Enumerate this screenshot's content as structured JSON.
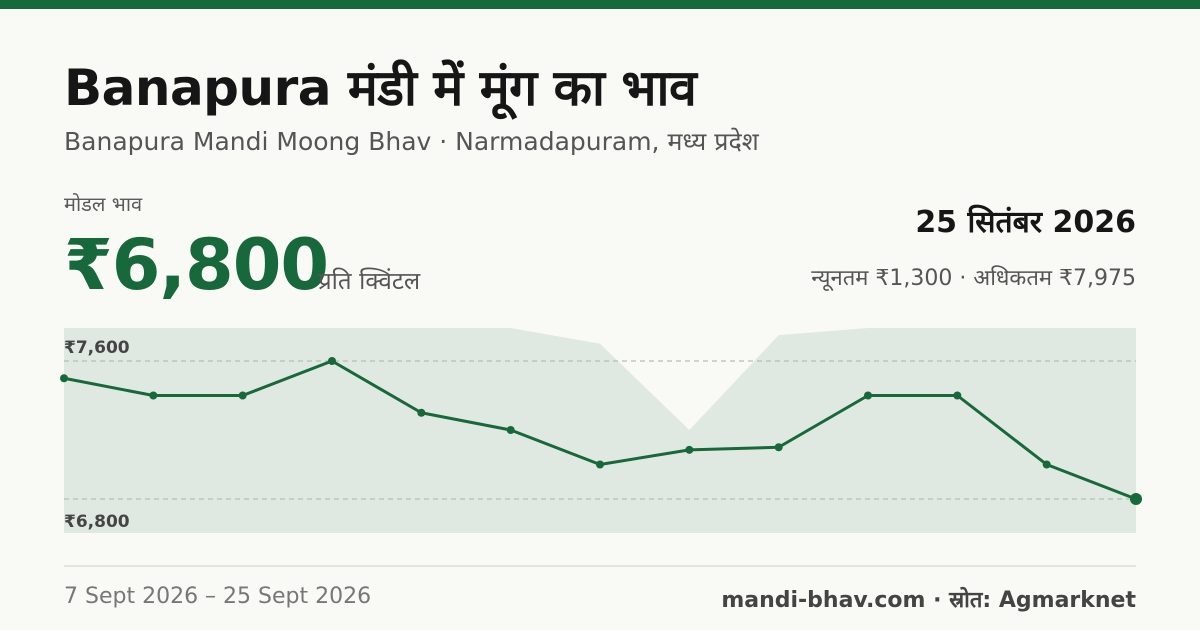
{
  "header": {
    "title": "Banapura मंडी में मूंग का भाव",
    "subtitle": "Banapura Mandi Moong Bhav · Narmadapuram, मध्य प्रदेश"
  },
  "summary": {
    "model_label": "मोडल भाव",
    "price": "₹6,800",
    "unit": "प्रति क्विंटल",
    "date": "25 सितंबर 2026",
    "min_max": "न्यूनतम ₹1,300 · अधिकतम ₹7,975"
  },
  "footer": {
    "range": "7 Sept 2026 – 25 Sept 2026",
    "source": "mandi-bhav.com · स्रोत: Agmarknet"
  },
  "colors": {
    "accent": "#17683a",
    "band": "#dfe9e1",
    "gridline": "#b9bdb5"
  },
  "chart_data": {
    "type": "line",
    "title": "",
    "xlabel": "",
    "ylabel": "",
    "ylim": [
      6800,
      7600
    ],
    "ref_lines": [
      {
        "value": 7600,
        "label": "₹7,600"
      },
      {
        "value": 6800,
        "label": "₹6,800"
      }
    ],
    "series": [
      {
        "values": [
          7500,
          7400,
          7400,
          7600,
          7300,
          7200,
          7000,
          7085,
          7100,
          7400,
          7400,
          7000,
          6800
        ]
      }
    ],
    "band_upper": [
      7975,
      7975,
      7975,
      7975,
      7975,
      7950,
      7700,
      7200,
      7750,
      7975,
      7975,
      7975,
      7975
    ],
    "band_lower_note": "filled to chart bottom"
  }
}
